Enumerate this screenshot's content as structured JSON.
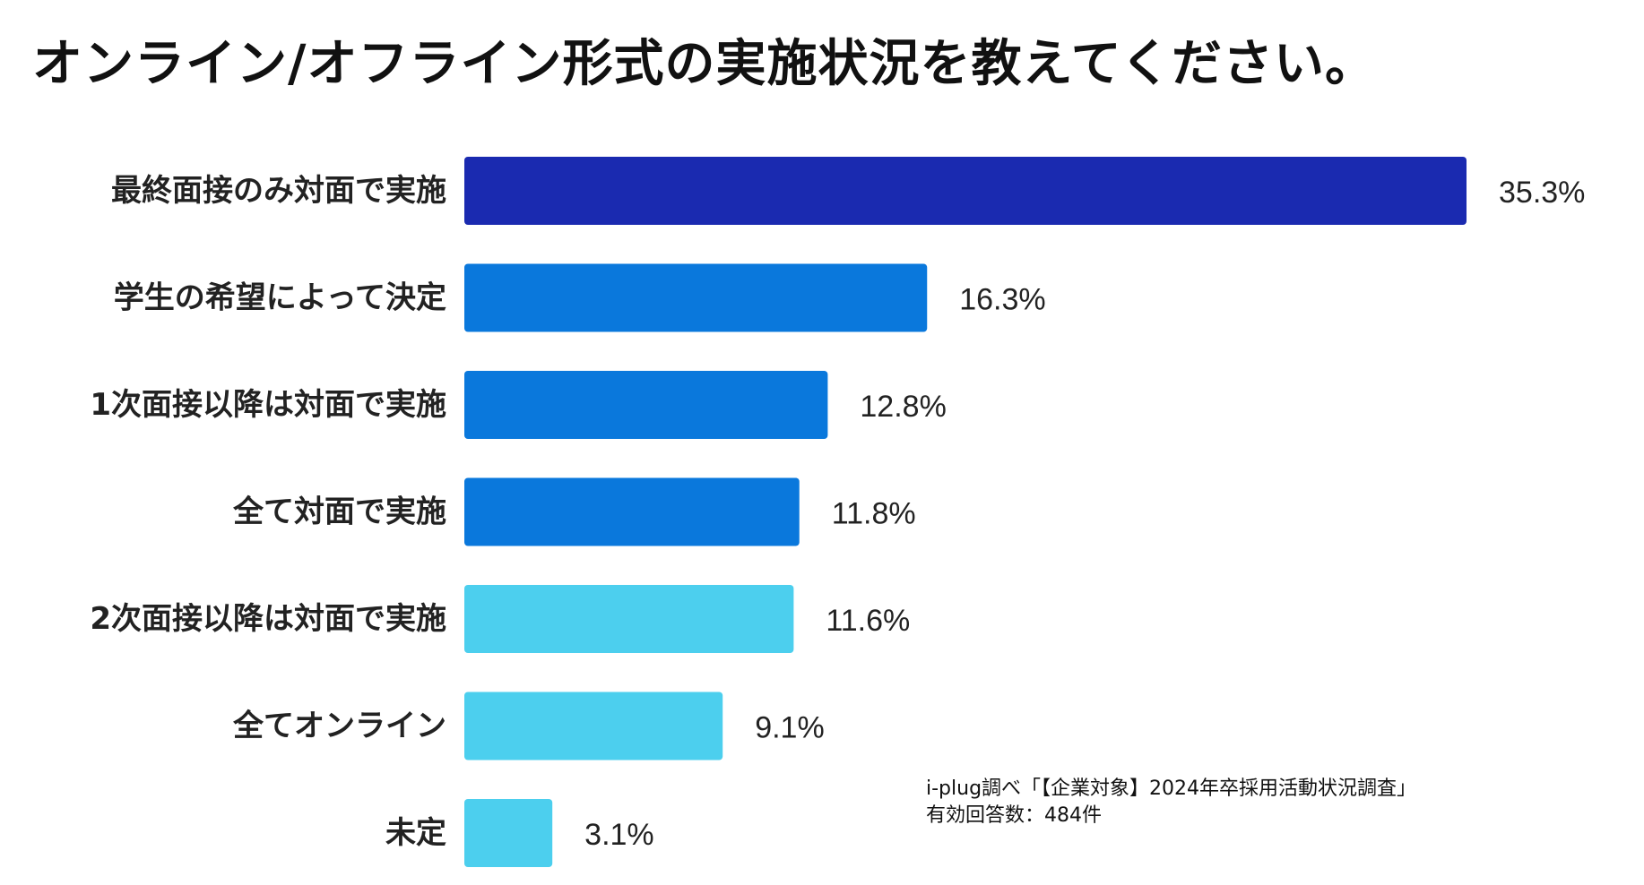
{
  "chart_data": {
    "type": "bar",
    "orientation": "horizontal",
    "title": "オンライン/オフライン形式の実施状況を教えてください。",
    "categories": [
      "最終面接のみ対面で実施",
      "学生の希望によって決定",
      "1次面接以降は対面で実施",
      "全て対面で実施",
      "2次面接以降は対面で実施",
      "全てオンライン",
      "未定"
    ],
    "values": [
      35.3,
      16.3,
      12.8,
      11.8,
      11.6,
      9.1,
      3.1
    ],
    "value_labels": [
      "35.3%",
      "16.3%",
      "12.8%",
      "11.8%",
      "11.6%",
      "9.1%",
      "3.1%"
    ],
    "bar_colors": [
      "#1a2ab0",
      "#0a78dc",
      "#0a78dc",
      "#0a78dc",
      "#4ccfee",
      "#4ccfee",
      "#4ccfee"
    ],
    "xlim": [
      0,
      35.3
    ],
    "xlabel": "",
    "ylabel": "",
    "grid": false,
    "legend": false
  },
  "source": {
    "line1": "i-plug調べ「【企業対象】2024年卒採用活動状況調査」",
    "line2": "有効回答数：484件"
  }
}
